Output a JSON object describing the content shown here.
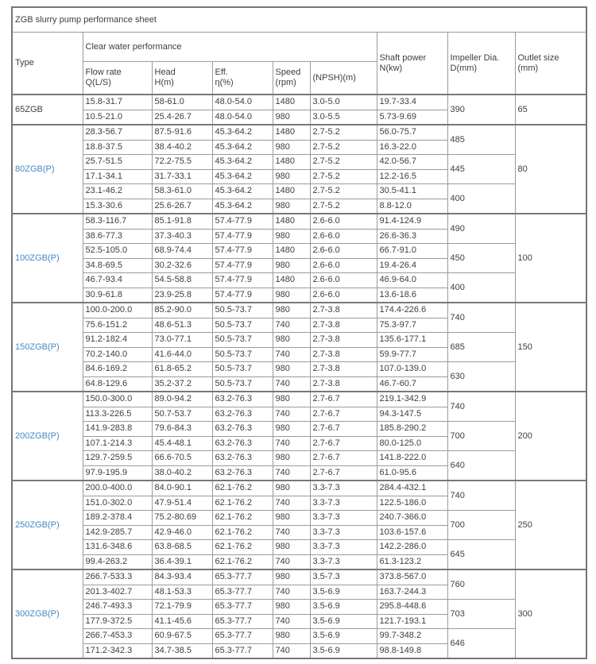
{
  "title": "ZGB slurry pump performance sheet",
  "colors": {
    "type_link_blue": "#4a86c8",
    "grid_border": "#9b9b9b",
    "section_border": "#787878",
    "text": "#3e3e3e"
  },
  "header": {
    "type": "Type",
    "clear_water": "Clear water performance",
    "flow_rate": "Flow rate\nQ(L/S)",
    "head": "Head\nH(m)",
    "eff": "Eff.\nη(%)",
    "speed": "Speed\n(rpm)",
    "npsh": "(NPSH)(m)",
    "shaft_power": "Shaft power\nN(kw)",
    "impeller_dia": "Impeller Dia.\nD(mm)",
    "outlet_size": "Outlet size\n(mm)"
  },
  "column_keys": [
    "flow_rate",
    "head",
    "eff",
    "speed",
    "npsh",
    "shaft_power"
  ],
  "groups": [
    {
      "type": "65ZGB",
      "link": false,
      "outlet": "65",
      "impellers": [
        "390"
      ],
      "rows": [
        [
          "15.8-31.7",
          "58-61.0",
          "48.0-54.0",
          "1480",
          "3.0-5.0",
          "19.7-33.4"
        ],
        [
          "10.5-21.0",
          "25.4-26.7",
          "48.0-54.0",
          "980",
          "3.0-5.5",
          "5.73-9.69"
        ]
      ]
    },
    {
      "type": "80ZGB(P)",
      "link": true,
      "outlet": "80",
      "impellers": [
        "485",
        "445",
        "400"
      ],
      "rows": [
        [
          "28.3-56.7",
          "87.5-91.6",
          "45.3-64.2",
          "1480",
          "2.7-5.2",
          "56.0-75.7"
        ],
        [
          "18.8-37.5",
          "38.4-40.2",
          "45.3-64.2",
          "980",
          "2.7-5.2",
          "16.3-22.0"
        ],
        [
          "25.7-51.5",
          "72.2-75.5",
          "45.3-64.2",
          "1480",
          "2.7-5.2",
          "42.0-56.7"
        ],
        [
          "17.1-34.1",
          "31.7-33.1",
          "45.3-64.2",
          "980",
          "2.7-5.2",
          "12.2-16.5"
        ],
        [
          "23.1-46.2",
          "58.3-61.0",
          "45.3-64.2",
          "1480",
          "2.7-5.2",
          "30.5-41.1"
        ],
        [
          "15.3-30.6",
          "25.6-26.7",
          "45.3-64.2",
          "980",
          "2.7-5.2",
          "8.8-12.0"
        ]
      ]
    },
    {
      "type": "100ZGB(P)",
      "link": true,
      "outlet": "100",
      "impellers": [
        "490",
        "450",
        "400"
      ],
      "rows": [
        [
          "58.3-116.7",
          "85.1-91.8",
          "57.4-77.9",
          "1480",
          "2.6-6.0",
          "91.4-124.9"
        ],
        [
          "38.6-77.3",
          "37.3-40.3",
          "57.4-77.9",
          "980",
          "2.6-6.0",
          "26.6-36.3"
        ],
        [
          "52.5-105.0",
          "68.9-74.4",
          "57.4-77.9",
          "1480",
          "2.6-6.0",
          "66.7-91.0"
        ],
        [
          "34.8-69.5",
          "30.2-32.6",
          "57.4-77.9",
          "980",
          "2.6-6.0",
          "19.4-26.4"
        ],
        [
          "46.7-93.4",
          "54.5-58.8",
          "57.4-77.9",
          "1480",
          "2.6-6.0",
          "46.9-64.0"
        ],
        [
          "30.9-61.8",
          "23.9-25.8",
          "57.4-77.9",
          "980",
          "2.6-6.0",
          "13.6-18.6"
        ]
      ]
    },
    {
      "type": "150ZGB(P)",
      "link": true,
      "outlet": "150",
      "impellers": [
        "740",
        "685",
        "630"
      ],
      "rows": [
        [
          "100.0-200.0",
          "85.2-90.0",
          "50.5-73.7",
          "980",
          "2.7-3.8",
          "174.4-226.6"
        ],
        [
          "75.6-151.2",
          "48.6-51.3",
          "50.5-73.7",
          "740",
          "2.7-3.8",
          "75.3-97.7"
        ],
        [
          "91.2-182.4",
          "73.0-77.1",
          "50.5-73.7",
          "980",
          "2.7-3.8",
          "135.6-177.1"
        ],
        [
          "70.2-140.0",
          "41.6-44.0",
          "50.5-73.7",
          "740",
          "2.7-3.8",
          "59.9-77.7"
        ],
        [
          "84.6-169.2",
          "61.8-65.2",
          "50.5-73.7",
          "980",
          "2.7-3.8",
          "107.0-139.0"
        ],
        [
          "64.8-129.6",
          "35.2-37.2",
          "50.5-73.7",
          "740",
          "2.7-3.8",
          "46.7-60.7"
        ]
      ]
    },
    {
      "type": "200ZGB(P)",
      "link": true,
      "outlet": "200",
      "impellers": [
        "740",
        "700",
        "640"
      ],
      "rows": [
        [
          "150.0-300.0",
          "89.0-94.2",
          "63.2-76.3",
          "980",
          "2.7-6.7",
          "219.1-342.9"
        ],
        [
          "113.3-226.5",
          "50.7-53.7",
          "63.2-76.3",
          "740",
          "2.7-6.7",
          "94.3-147.5"
        ],
        [
          "141.9-283.8",
          "79.6-84.3",
          "63.2-76.3",
          "980",
          "2.7-6.7",
          "185.8-290.2"
        ],
        [
          "107.1-214.3",
          "45.4-48.1",
          "63.2-76.3",
          "740",
          "2.7-6.7",
          "80.0-125.0"
        ],
        [
          "129.7-259.5",
          "66.6-70.5",
          "63.2-76.3",
          "980",
          "2.7-6.7",
          "141.8-222.0"
        ],
        [
          "97.9-195.9",
          "38.0-40.2",
          "63.2-76.3",
          "740",
          "2.7-6.7",
          "61.0-95.6"
        ]
      ]
    },
    {
      "type": "250ZGB(P)",
      "link": true,
      "outlet": "250",
      "impellers": [
        "740",
        "700",
        "645"
      ],
      "rows": [
        [
          "200.0-400.0",
          "84.0-90.1",
          "62.1-76.2",
          "980",
          "3.3-7.3",
          "284.4-432.1"
        ],
        [
          "151.0-302.0",
          "47.9-51.4",
          "62.1-76.2",
          "740",
          "3.3-7.3",
          "122.5-186.0"
        ],
        [
          "189.2-378.4",
          "75.2-80.69",
          "62.1-76.2",
          "980",
          "3.3-7.3",
          "240.7-366.0"
        ],
        [
          "142.9-285.7",
          "42.9-46.0",
          "62.1-76.2",
          "740",
          "3.3-7.3",
          "103.6-157.6"
        ],
        [
          "131.6-348.6",
          "63.8-68.5",
          "62.1-76.2",
          "980",
          "3.3-7.3",
          "142.2-286.0"
        ],
        [
          "99.4-263.2",
          "36.4-39.1",
          "62.1-76.2",
          "740",
          "3.3-7.3",
          "61.3-123.2"
        ]
      ]
    },
    {
      "type": "300ZGB(P)",
      "link": true,
      "outlet": "300",
      "impellers": [
        "760",
        "703",
        "646"
      ],
      "rows": [
        [
          "266.7-533.3",
          "84.3-93.4",
          "65.3-77.7",
          "980",
          "3.5-7.3",
          "373.8-567.0"
        ],
        [
          "201.3-402.7",
          "48.1-53.3",
          "65.3-77.7",
          "740",
          "3.5-6.9",
          "163.7-244.3"
        ],
        [
          "246.7-493.3",
          "72.1-79.9",
          "65.3-77.7",
          "980",
          "3.5-6.9",
          "295.8-448.6"
        ],
        [
          "177.9-372.5",
          "41.1-45.6",
          "65.3-77.7",
          "740",
          "3.5-6.9",
          "121.7-193.1"
        ],
        [
          "266.7-453.3",
          "60.9-67.5",
          "65.3-77.7",
          "980",
          "3.5-6.9",
          "99.7-348.2"
        ],
        [
          "171.2-342.3",
          "34.7-38.5",
          "65.3-77.7",
          "740",
          "3.5-6.9",
          "98.8-149.8"
        ]
      ]
    }
  ]
}
